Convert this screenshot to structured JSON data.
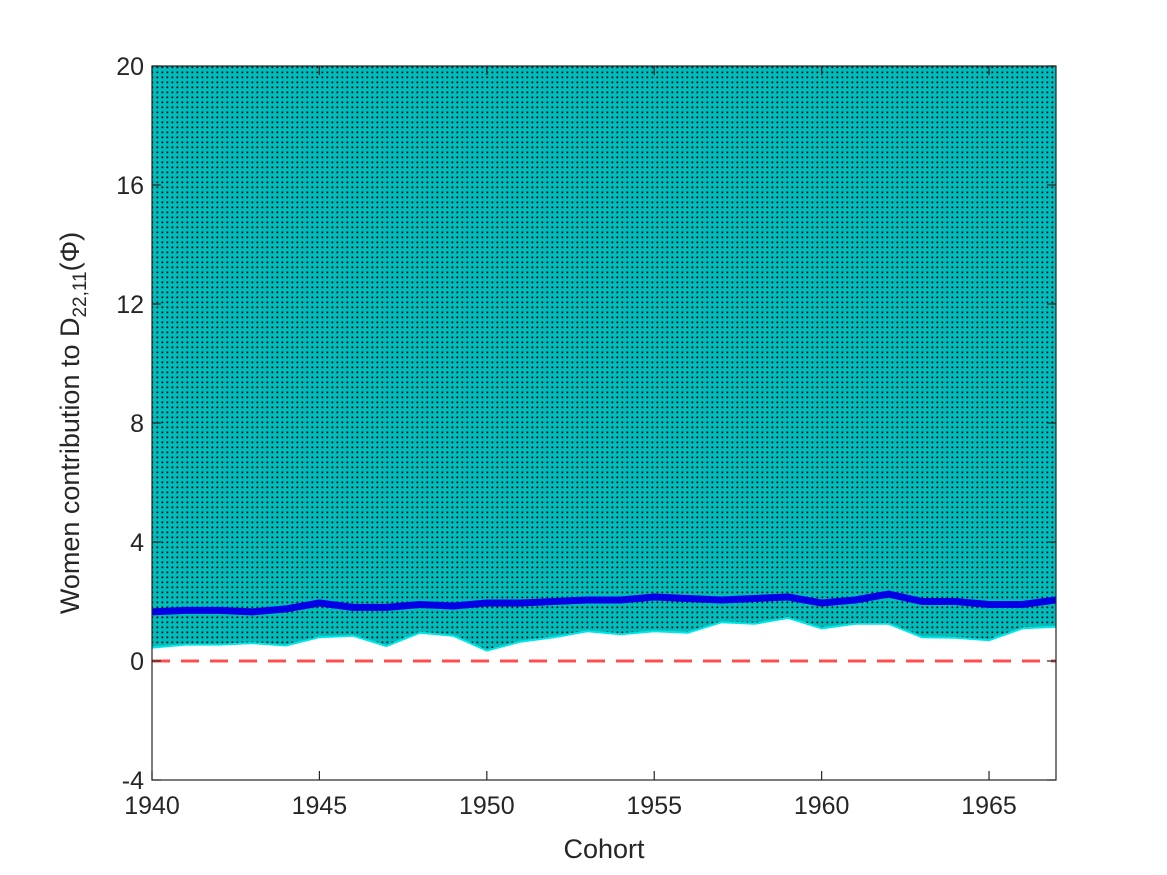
{
  "chart_data": {
    "type": "area",
    "xlabel": "Cohort",
    "ylabel": {
      "main": "Women contribution to D",
      "subscript": "22,11",
      "suffix": "(Φ)"
    },
    "xlim": [
      1940,
      1967
    ],
    "ylim": [
      -4,
      20
    ],
    "xticks": [
      1940,
      1945,
      1950,
      1955,
      1960,
      1965
    ],
    "yticks": [
      -4,
      0,
      4,
      8,
      12,
      16,
      20
    ],
    "x": [
      1940,
      1941,
      1942,
      1943,
      1944,
      1945,
      1946,
      1947,
      1948,
      1949,
      1950,
      1951,
      1952,
      1953,
      1954,
      1955,
      1956,
      1957,
      1958,
      1959,
      1960,
      1961,
      1962,
      1963,
      1964,
      1965,
      1966,
      1967
    ],
    "series": [
      {
        "role": "band-lower",
        "values": [
          0.45,
          0.55,
          0.55,
          0.6,
          0.52,
          0.8,
          0.85,
          0.5,
          0.95,
          0.85,
          0.35,
          0.65,
          0.8,
          1.0,
          0.9,
          1.0,
          0.95,
          1.3,
          1.25,
          1.45,
          1.1,
          1.25,
          1.25,
          0.8,
          0.78,
          0.7,
          1.1,
          1.15
        ]
      },
      {
        "role": "band-upper",
        "values": [
          20,
          20,
          20,
          20,
          20,
          20,
          20,
          20,
          20,
          20,
          20,
          20,
          20,
          20,
          20,
          20,
          20,
          20,
          20,
          20,
          20,
          20,
          20,
          20,
          20,
          20,
          20,
          20
        ]
      },
      {
        "role": "point-estimate",
        "values": [
          1.65,
          1.7,
          1.7,
          1.65,
          1.75,
          1.95,
          1.8,
          1.8,
          1.9,
          1.85,
          1.95,
          1.95,
          2.0,
          2.05,
          2.05,
          2.15,
          2.1,
          2.05,
          2.1,
          2.15,
          1.95,
          2.05,
          2.25,
          2.0,
          2.0,
          1.9,
          1.9,
          2.05
        ]
      },
      {
        "role": "reference",
        "values": [
          0,
          0,
          0,
          0,
          0,
          0,
          0,
          0,
          0,
          0,
          0,
          0,
          0,
          0,
          0,
          0,
          0,
          0,
          0,
          0,
          0,
          0,
          0,
          0,
          0,
          0,
          0,
          0
        ]
      }
    ],
    "colors": {
      "band_fill": "#00bdbd",
      "band_dots": "#000000",
      "band_edge": "#00e6e6",
      "estimate_line": "#0000e6",
      "reference_line": "#ff4d4d",
      "axes": "#262626"
    },
    "grid": false,
    "legend": "none"
  }
}
